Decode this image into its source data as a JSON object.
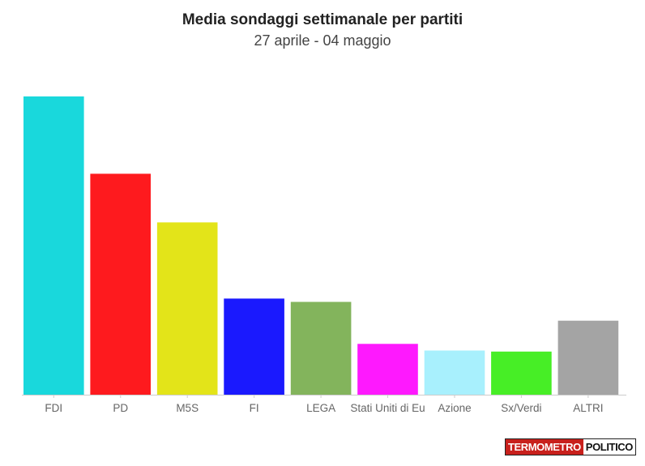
{
  "title": "Media sondaggi settimanale per partiti",
  "subtitle": "27 aprile - 04 maggio",
  "logo": {
    "part1": "TERMOMETRO",
    "part2": "POLITICO"
  },
  "chart_data": {
    "type": "bar",
    "title": "Media sondaggi settimanale per partiti",
    "subtitle": "27 aprile - 04 maggio",
    "xlabel": "",
    "ylabel": "",
    "categories": [
      "FDI",
      "PD",
      "M5S",
      "FI",
      "LEGA",
      "Stati Uniti di Eu",
      "Azione",
      "Sx/Verdi",
      "ALTRI"
    ],
    "values": [
      27.0,
      20.0,
      15.6,
      8.7,
      8.4,
      4.6,
      4.0,
      3.9,
      6.7
    ],
    "colors": [
      "#19d8dc",
      "#fe1a1e",
      "#e3e419",
      "#1a19fe",
      "#83b45c",
      "#fe19fe",
      "#a8f0fd",
      "#47ee26",
      "#a4a4a4"
    ],
    "ylim": [
      0,
      27.0
    ],
    "grid": false,
    "legend": "none"
  }
}
